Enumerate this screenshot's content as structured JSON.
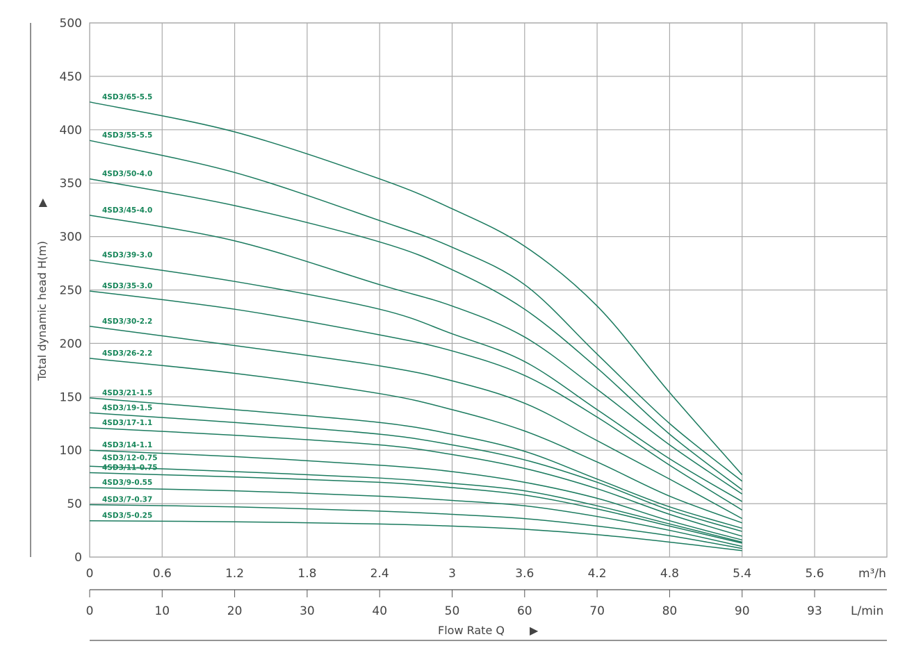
{
  "chart_data": {
    "type": "line",
    "title": "",
    "ylabel": "Total dynamic head H(m)",
    "xlabel": "Flow Rate Q",
    "ylim": [
      0,
      500
    ],
    "yticks": [
      0,
      50,
      100,
      150,
      200,
      250,
      300,
      350,
      400,
      450,
      500
    ],
    "x_ticks_m3h": [
      "0",
      "0.6",
      "1.2",
      "1.8",
      "2.4",
      "3",
      "3.6",
      "4.2",
      "4.8",
      "5.4",
      "5.6"
    ],
    "x_unit_m3h": "m³/h",
    "x_ticks_lmin": [
      "0",
      "10",
      "20",
      "30",
      "40",
      "50",
      "60",
      "70",
      "80",
      "90",
      "93"
    ],
    "x_unit_lmin": "L/min",
    "grid": true,
    "line_color": "#1a7a5e",
    "label_color": "#17865a",
    "x": [
      0,
      1.2,
      2.4,
      3.0,
      3.6,
      4.2,
      4.8,
      5.4
    ],
    "series": [
      {
        "name": "4SD3/65-5.5",
        "values": [
          426,
          398,
          354,
          326,
          291,
          235,
          154,
          77
        ]
      },
      {
        "name": "4SD3/55-5.5",
        "values": [
          390,
          360,
          315,
          290,
          255,
          190,
          125,
          71
        ]
      },
      {
        "name": "4SD3/50-4.0",
        "values": [
          354,
          329,
          295,
          269,
          232,
          177,
          115,
          63
        ]
      },
      {
        "name": "4SD3/45-4.0",
        "values": [
          320,
          296,
          255,
          235,
          206,
          157,
          105,
          59
        ]
      },
      {
        "name": "4SD3/39-3.0",
        "values": [
          278,
          258,
          232,
          209,
          183,
          138,
          92,
          52
        ]
      },
      {
        "name": "4SD3/35-3.0",
        "values": [
          249,
          232,
          208,
          193,
          170,
          131,
          86,
          44
        ]
      },
      {
        "name": "4SD3/30-2.2",
        "values": [
          216,
          198,
          179,
          165,
          144,
          109,
          73,
          36
        ]
      },
      {
        "name": "4SD3/26-2.2",
        "values": [
          186,
          172,
          153,
          138,
          118,
          89,
          57,
          32
        ]
      },
      {
        "name": "4SD3/21-1.5",
        "values": [
          149,
          138,
          126,
          115,
          99,
          73,
          47,
          27
        ]
      },
      {
        "name": "4SD3/19-1.5",
        "values": [
          135,
          126,
          115,
          105,
          91,
          70,
          44,
          24
        ]
      },
      {
        "name": "4SD3/17-1.1",
        "values": [
          121,
          114,
          105,
          96,
          83,
          64,
          40,
          19.5
        ]
      },
      {
        "name": "4SD3/14-1.1",
        "values": [
          100,
          94,
          86,
          80,
          70,
          55,
          34,
          16
        ]
      },
      {
        "name": "4SD3/12-0.75",
        "values": [
          85,
          80,
          74,
          69,
          62,
          48,
          31,
          14
        ]
      },
      {
        "name": "4SD3/11-0.75",
        "values": [
          79,
          75,
          70,
          65,
          58,
          45,
          29,
          13
        ]
      },
      {
        "name": "4SD3/9-0.55",
        "values": [
          65,
          62,
          57,
          53,
          48,
          38,
          25,
          10
        ]
      },
      {
        "name": "4SD3/7-0.37",
        "values": [
          49,
          47,
          43,
          40,
          36,
          29,
          20,
          8
        ]
      },
      {
        "name": "4SD3/5-0.25",
        "values": [
          34,
          33,
          31,
          29,
          26,
          21,
          14,
          6
        ]
      }
    ]
  }
}
